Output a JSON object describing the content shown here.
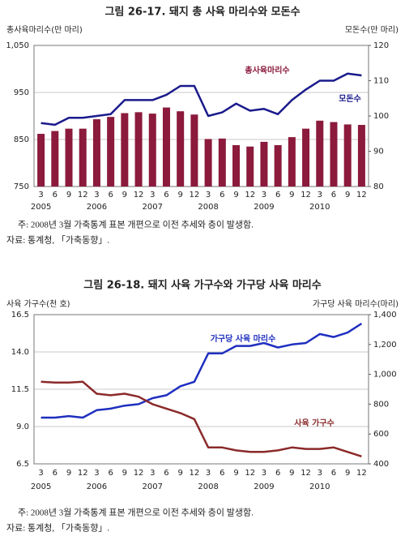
{
  "chart_data": [
    {
      "type": "bar",
      "title": "그림 26-17.  돼지 총 사육 마리수와 모돈수",
      "ylabel": "총사육마리수(만 마리)",
      "y2label": "모돈수(만 마리)",
      "categories": [
        "3",
        "6",
        "9",
        "12",
        "3",
        "6",
        "9",
        "12",
        "3",
        "6",
        "9",
        "12",
        "3",
        "6",
        "9",
        "12",
        "3",
        "6",
        "9",
        "12",
        "3",
        "6",
        "9",
        "12"
      ],
      "category_groups": [
        "2005",
        "2006",
        "2007",
        "2008",
        "2009",
        "2010"
      ],
      "ylim": [
        750,
        1050
      ],
      "yticks": [
        750,
        850,
        950,
        {
          "value": 1050,
          "label": "1,050"
        }
      ],
      "y2lim": [
        80,
        120
      ],
      "y2ticks": [
        80,
        90,
        100,
        110,
        120
      ],
      "grid": true,
      "series": [
        {
          "name": "총사육마리수",
          "type": "bar",
          "color": "#8b1a3c",
          "values": [
            862,
            868,
            873,
            873,
            893,
            898,
            906,
            908,
            905,
            918,
            910,
            903,
            851,
            852,
            838,
            835,
            845,
            838,
            855,
            873,
            890,
            887,
            882,
            881
          ]
        },
        {
          "name": "모돈수",
          "type": "line",
          "axis": "y2",
          "color": "#1a1a8c",
          "values": [
            98,
            97.5,
            99.5,
            99.5,
            100,
            100.5,
            104.5,
            104.5,
            104.5,
            106,
            108.5,
            108.5,
            100,
            101,
            103.5,
            101.5,
            102,
            100.5,
            104.5,
            107.5,
            110,
            110,
            112,
            111.5
          ]
        }
      ],
      "note": "주: 2008년 3월 가축통계 표본 개편으로 이전 추세와 층이 발생함.",
      "source": "자료: 통계청, 「가축동향」."
    },
    {
      "type": "line",
      "title": "그림 26-18.  돼지 사육 가구수와 가구당 사육 마리수",
      "ylabel": "사육 가구수(천 호)",
      "y2label": "가구당 사육 마리수(마리)",
      "categories": [
        "3",
        "6",
        "9",
        "12",
        "3",
        "6",
        "9",
        "12",
        "3",
        "6",
        "9",
        "12",
        "3",
        "6",
        "9",
        "12",
        "3",
        "6",
        "9",
        "12",
        "3",
        "6",
        "9",
        "12"
      ],
      "category_groups": [
        "2005",
        "2006",
        "2007",
        "2008",
        "2009",
        "2010"
      ],
      "ylim": [
        6.5,
        16.5
      ],
      "yticks": [
        6.5,
        {
          "value": 9,
          "label": "9.0"
        },
        11.5,
        {
          "value": 14,
          "label": "14.0"
        },
        16.5
      ],
      "y2lim": [
        400,
        1400
      ],
      "y2ticks": [
        400,
        600,
        800,
        {
          "value": 1000,
          "label": "1,000"
        },
        {
          "value": 1200,
          "label": "1,200"
        },
        {
          "value": 1400,
          "label": "1,400"
        }
      ],
      "grid": true,
      "series": [
        {
          "name": "가구당 사육 마리수",
          "type": "line",
          "axis": "y2",
          "color": "#1f2fbf",
          "values": [
            710,
            710,
            720,
            710,
            760,
            770,
            790,
            800,
            840,
            860,
            920,
            950,
            1140,
            1140,
            1190,
            1190,
            1210,
            1180,
            1200,
            1210,
            1270,
            1250,
            1280,
            1340
          ]
        },
        {
          "name": "사육 가구수",
          "type": "line",
          "color": "#8b2a2a",
          "values": [
            12.0,
            11.95,
            11.95,
            12.0,
            11.2,
            11.1,
            11.2,
            11.0,
            10.5,
            10.2,
            9.9,
            9.5,
            7.6,
            7.6,
            7.4,
            7.3,
            7.3,
            7.4,
            7.6,
            7.5,
            7.5,
            7.6,
            7.3,
            7.0
          ]
        }
      ],
      "note": "주: 2008년 3월 가축통계 표본 개편으로 이전 추세와 층이 발생함.",
      "source": "자료: 통계청, 「가축동향」."
    }
  ]
}
